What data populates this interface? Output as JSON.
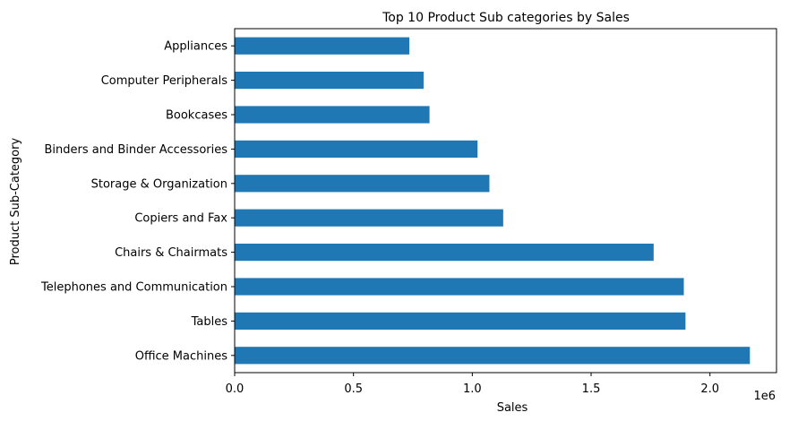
{
  "chart_data": {
    "type": "bar",
    "orientation": "horizontal",
    "title": "Top 10 Product Sub categories by Sales",
    "xlabel": "Sales",
    "ylabel": "Product Sub-Category",
    "x_scale_label": "1e6",
    "xlim": [
      0,
      2.28
    ],
    "x_ticks": [
      0.0,
      0.5,
      1.0,
      1.5,
      2.0
    ],
    "x_tick_labels": [
      "0.0",
      "0.5",
      "1.0",
      "1.5",
      "2.0"
    ],
    "grid": false,
    "bar_color": "#1f77b4",
    "categories": [
      "Appliances",
      "Computer Peripherals",
      "Bookcases",
      "Binders and Binder Accessories",
      "Storage & Organization",
      "Copiers and Fax",
      "Chairs & Chairmats",
      "Telephones and Communication",
      "Tables",
      "Office Machines"
    ],
    "values": [
      0.735,
      0.795,
      0.82,
      1.022,
      1.072,
      1.13,
      1.763,
      1.89,
      1.897,
      2.168
    ]
  }
}
